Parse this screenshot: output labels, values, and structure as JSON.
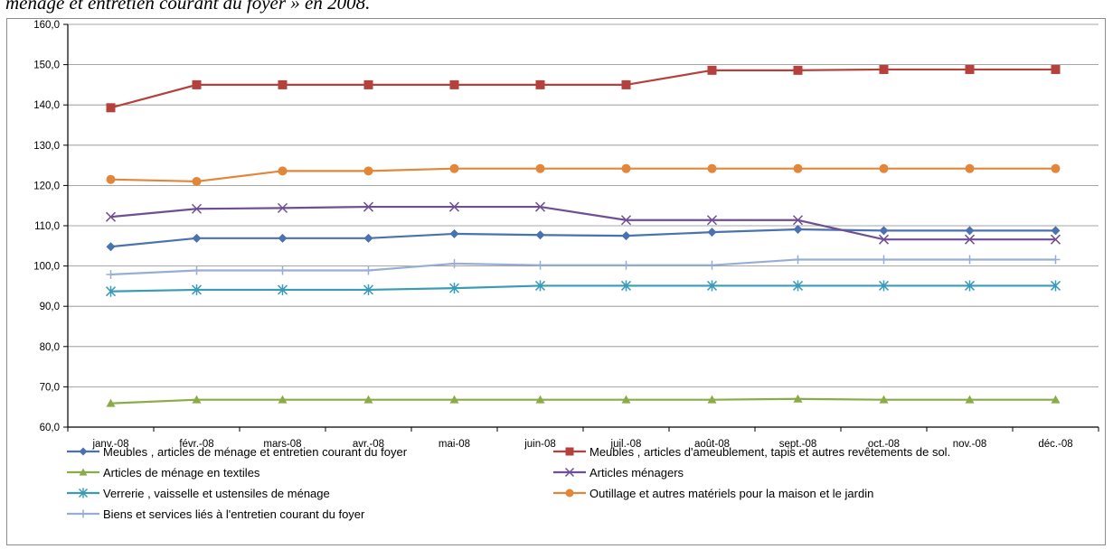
{
  "page": {
    "caption": "ménage et entretien courant du foyer » en 2008."
  },
  "chart_data": {
    "type": "line",
    "title": "",
    "xlabel": "",
    "ylabel": "",
    "ylim": [
      60,
      160
    ],
    "yticks": [
      "60,0",
      "70,0",
      "80,0",
      "90,0",
      "100,0",
      "110,0",
      "120,0",
      "130,0",
      "140,0",
      "150,0",
      "160,0"
    ],
    "grid": true,
    "legend_position": "bottom",
    "categories": [
      "janv.-08",
      "févr.-08",
      "mars-08",
      "avr.-08",
      "mai-08",
      "juin-08",
      "juil.-08",
      "août-08",
      "sept.-08",
      "oct.-08",
      "nov.-08",
      "déc.-08"
    ],
    "series": [
      {
        "name": "Meubles , articles de ménage et entretien courant du foyer",
        "color": "#4a72b0",
        "marker": "diamond",
        "values": [
          104.8,
          106.9,
          106.9,
          106.9,
          108.0,
          107.7,
          107.5,
          108.4,
          109.1,
          108.8,
          108.8,
          108.8
        ]
      },
      {
        "name": "Meubles , articles d'ameublement,  tapis et autres revêtements de sol.",
        "color": "#b5403c",
        "marker": "square",
        "values": [
          139.3,
          145.0,
          145.0,
          145.0,
          145.0,
          145.0,
          145.0,
          148.6,
          148.6,
          148.8,
          148.8,
          148.8
        ]
      },
      {
        "name": "Articles de ménage en textiles",
        "color": "#8bab46",
        "marker": "triangle",
        "values": [
          65.9,
          66.8,
          66.8,
          66.8,
          66.8,
          66.8,
          66.8,
          66.8,
          67.0,
          66.8,
          66.8,
          66.8
        ]
      },
      {
        "name": "Articles  ménagers",
        "color": "#6f4f94",
        "marker": "x",
        "values": [
          112.2,
          114.2,
          114.4,
          114.7,
          114.7,
          114.7,
          111.4,
          111.4,
          111.4,
          106.6,
          106.6,
          106.6
        ]
      },
      {
        "name": "Verrerie , vaisselle et ustensiles de ménage",
        "color": "#3a9bb6",
        "marker": "star",
        "values": [
          93.7,
          94.1,
          94.1,
          94.1,
          94.5,
          95.1,
          95.1,
          95.1,
          95.1,
          95.1,
          95.1,
          95.1
        ]
      },
      {
        "name": "Outillage et autres matériels pour la maison et le jardin",
        "color": "#e2873a",
        "marker": "circle",
        "values": [
          121.5,
          121.0,
          123.6,
          123.6,
          124.2,
          124.2,
          124.2,
          124.2,
          124.2,
          124.2,
          124.2,
          124.2
        ]
      },
      {
        "name": "Biens et services liés à l'entretien courant du foyer",
        "color": "#97aed4",
        "marker": "plus",
        "values": [
          97.9,
          98.9,
          98.9,
          98.9,
          100.6,
          100.2,
          100.2,
          100.2,
          101.6,
          101.6,
          101.6,
          101.6
        ]
      }
    ]
  }
}
